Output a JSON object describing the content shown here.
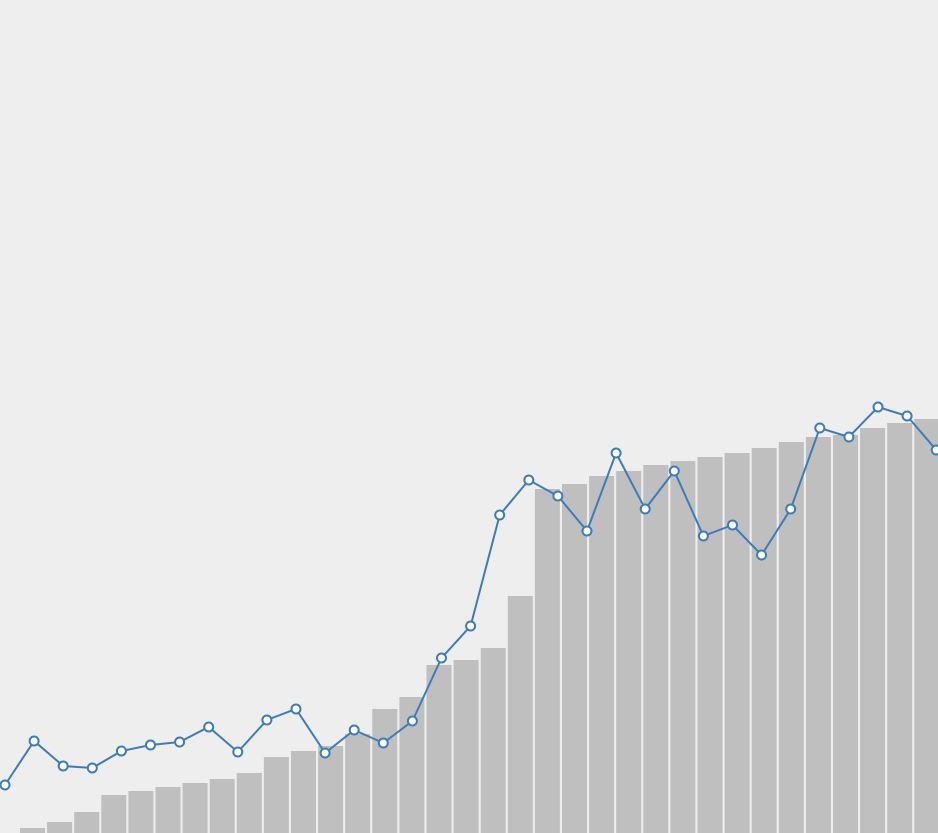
{
  "chart_data": [
    {
      "type": "bar",
      "color": "#bfbfbf",
      "ylim": [
        0,
        833
      ],
      "values": [
        5,
        11,
        21,
        38,
        42,
        46,
        50,
        54,
        60,
        76,
        82,
        87,
        99,
        124,
        136,
        168,
        173,
        185,
        237,
        344,
        349,
        357,
        362,
        368,
        372,
        376,
        380,
        385,
        391,
        396,
        398,
        405,
        410,
        414
      ]
    },
    {
      "type": "line",
      "color": "#3e7cb8",
      "ylim": [
        0,
        833
      ],
      "values": [
        48,
        92,
        67,
        65,
        82,
        88,
        91,
        106,
        81,
        113,
        124,
        80,
        103,
        90,
        112,
        175,
        207,
        318,
        353,
        337,
        302,
        380,
        324,
        362,
        297,
        308,
        278,
        324,
        405,
        396,
        426,
        417,
        383
      ]
    }
  ]
}
